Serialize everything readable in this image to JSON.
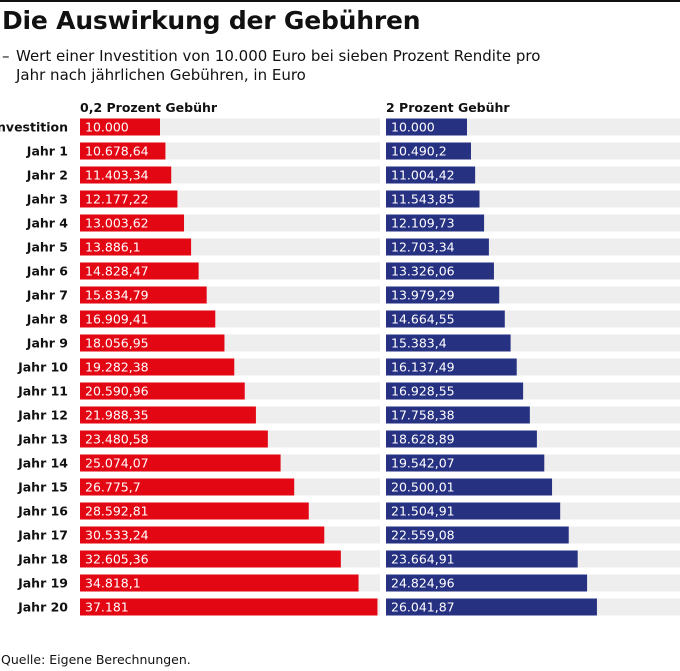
{
  "title": "Die Auswirkung der Gebühren",
  "subtitle_dash": "–",
  "subtitle": "Wert einer Investition von 10.000 Euro bei sieben Prozent Rendite pro Jahr nach jährlichen Gebühren, in Euro",
  "source": "Quelle: Eigene Berechnungen.",
  "colors": {
    "red": "#e30613",
    "blue": "#263182",
    "track": "#eeeeee"
  },
  "chart_data": {
    "type": "bar",
    "orientation": "horizontal",
    "title": "Die Auswirkung der Gebühren",
    "categories": [
      "Investition",
      "Jahr 1",
      "Jahr 2",
      "Jahr 3",
      "Jahr 4",
      "Jahr 5",
      "Jahr 6",
      "Jahr 7",
      "Jahr 8",
      "Jahr 9",
      "Jahr 10",
      "Jahr 11",
      "Jahr 12",
      "Jahr 13",
      "Jahr 14",
      "Jahr 15",
      "Jahr 16",
      "Jahr 17",
      "Jahr 18",
      "Jahr 19",
      "Jahr 20"
    ],
    "series": [
      {
        "name": "0,2 Prozent Gebühr",
        "color": "#e30613",
        "values": [
          10000,
          10678.64,
          11403.34,
          12177.22,
          13003.62,
          13886.1,
          14828.47,
          15834.79,
          16909.41,
          18056.95,
          19282.38,
          20590.96,
          21988.35,
          23480.58,
          25074.07,
          26775.7,
          28592.81,
          30533.24,
          32605.36,
          34818.1,
          37181
        ],
        "labels": [
          "10.000",
          "10.678,64",
          "11.403,34",
          "12.177,22",
          "13.003,62",
          "13.886,1",
          "14.828,47",
          "15.834,79",
          "16.909,41",
          "18.056,95",
          "19.282,38",
          "20.590,96",
          "21.988,35",
          "23.480,58",
          "25.074,07",
          "26.775,7",
          "28.592,81",
          "30.533,24",
          "32.605,36",
          "34.818,1",
          "37.181"
        ]
      },
      {
        "name": "2 Prozent Gebühr",
        "color": "#263182",
        "values": [
          10000,
          10490.2,
          11004.42,
          11543.85,
          12109.73,
          12703.34,
          13326.06,
          13979.29,
          14664.55,
          15383.4,
          16137.49,
          16928.55,
          17758.38,
          18628.89,
          19542.07,
          20500.01,
          21504.91,
          22559.08,
          23664.91,
          24824.96,
          26041.87
        ],
        "labels": [
          "10.000",
          "10.490,2",
          "11.004,42",
          "11.543,85",
          "12.109,73",
          "12.703,34",
          "13.326,06",
          "13.979,29",
          "14.664,55",
          "15.383,4",
          "16.137,49",
          "16.928,55",
          "17.758,38",
          "18.628,89",
          "19.542,07",
          "20.500,01",
          "21.504,91",
          "22.559,08",
          "23.664,91",
          "24.824,96",
          "26.041,87"
        ]
      }
    ],
    "grid": false,
    "legend": "column-headers"
  }
}
